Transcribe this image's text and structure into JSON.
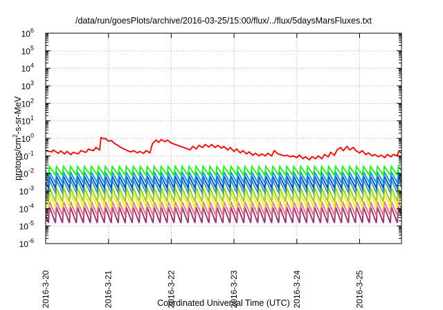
{
  "chart_data": {
    "type": "line",
    "title": "/data/run/goesPlots/archive/2016-03-25/15:00/flux/../flux/5daysMarsFluxes.txt",
    "xlabel": "Coordinated Universal Time (UTC)",
    "ylabel_base": "protons/cm",
    "ylabel_sup": "2",
    "ylabel_tail": "-s-sr-MeV",
    "y_scale": "log",
    "ylim": [
      1e-06,
      1000000.0
    ],
    "y_ticks": [
      {
        "exp": -6,
        "base": "10",
        "sup": "-6"
      },
      {
        "exp": -5,
        "base": "10",
        "sup": "-5"
      },
      {
        "exp": -4,
        "base": "10",
        "sup": "-4"
      },
      {
        "exp": -3,
        "base": "10",
        "sup": "-3"
      },
      {
        "exp": -2,
        "base": "10",
        "sup": "-2"
      },
      {
        "exp": -1,
        "base": "10",
        "sup": "-1"
      },
      {
        "exp": 0,
        "base": "10",
        "sup": "0"
      },
      {
        "exp": 1,
        "base": "10",
        "sup": "1"
      },
      {
        "exp": 2,
        "base": "10",
        "sup": "2"
      },
      {
        "exp": 3,
        "base": "10",
        "sup": "3"
      },
      {
        "exp": 4,
        "base": "10",
        "sup": "4"
      },
      {
        "exp": 5,
        "base": "10",
        "sup": "5"
      },
      {
        "exp": 6,
        "base": "10",
        "sup": "6"
      }
    ],
    "xlim": [
      "2016-03-20",
      "2016-03-25 16:00"
    ],
    "x_ticks": [
      {
        "day": 0,
        "label": "2016-3-20"
      },
      {
        "day": 1,
        "label": "2016-3-21"
      },
      {
        "day": 2,
        "label": "2016-3-22"
      },
      {
        "day": 3,
        "label": "2016-3-23"
      },
      {
        "day": 4,
        "label": "2016-3-24"
      },
      {
        "day": 5,
        "label": "2016-3-25"
      }
    ],
    "grid": true,
    "legend": "none",
    "cycles_per_day": 9,
    "series": [
      {
        "color": "#ee1111",
        "style": "irregular",
        "points": [
          [
            0.0,
            0.2
          ],
          [
            0.1,
            0.17
          ],
          [
            0.12,
            0.22
          ],
          [
            0.2,
            0.14
          ],
          [
            0.24,
            0.19
          ],
          [
            0.3,
            0.13
          ],
          [
            0.34,
            0.18
          ],
          [
            0.4,
            0.12
          ],
          [
            0.44,
            0.16
          ],
          [
            0.52,
            0.13
          ],
          [
            0.56,
            0.2
          ],
          [
            0.64,
            0.16
          ],
          [
            0.68,
            0.24
          ],
          [
            0.76,
            0.2
          ],
          [
            0.8,
            0.3
          ],
          [
            0.86,
            0.22
          ],
          [
            0.88,
            1.1
          ],
          [
            0.93,
            0.95
          ],
          [
            0.95,
            1.0
          ],
          [
            1.0,
            0.7
          ],
          [
            1.05,
            0.75
          ],
          [
            1.1,
            0.5
          ],
          [
            1.15,
            0.4
          ],
          [
            1.2,
            0.3
          ],
          [
            1.25,
            0.25
          ],
          [
            1.3,
            0.2
          ],
          [
            1.36,
            0.17
          ],
          [
            1.4,
            0.2
          ],
          [
            1.46,
            0.15
          ],
          [
            1.5,
            0.18
          ],
          [
            1.56,
            0.14
          ],
          [
            1.6,
            0.2
          ],
          [
            1.66,
            0.15
          ],
          [
            1.7,
            0.5
          ],
          [
            1.76,
            0.8
          ],
          [
            1.8,
            0.6
          ],
          [
            1.84,
            0.85
          ],
          [
            1.9,
            0.65
          ],
          [
            1.94,
            0.8
          ],
          [
            2.0,
            0.55
          ],
          [
            2.1,
            0.4
          ],
          [
            2.2,
            0.3
          ],
          [
            2.3,
            0.22
          ],
          [
            2.34,
            0.35
          ],
          [
            2.4,
            0.25
          ],
          [
            2.44,
            0.4
          ],
          [
            2.5,
            0.3
          ],
          [
            2.54,
            0.45
          ],
          [
            2.6,
            0.32
          ],
          [
            2.64,
            0.45
          ],
          [
            2.7,
            0.3
          ],
          [
            2.74,
            0.4
          ],
          [
            2.8,
            0.28
          ],
          [
            2.84,
            0.35
          ],
          [
            2.9,
            0.22
          ],
          [
            2.94,
            0.3
          ],
          [
            3.0,
            0.18
          ],
          [
            3.04,
            0.25
          ],
          [
            3.1,
            0.15
          ],
          [
            3.14,
            0.2
          ],
          [
            3.2,
            0.13
          ],
          [
            3.24,
            0.17
          ],
          [
            3.3,
            0.11
          ],
          [
            3.34,
            0.14
          ],
          [
            3.4,
            0.1
          ],
          [
            3.44,
            0.13
          ],
          [
            3.5,
            0.1
          ],
          [
            3.54,
            0.14
          ],
          [
            3.6,
            0.1
          ],
          [
            3.64,
            0.2
          ],
          [
            3.7,
            0.13
          ],
          [
            3.74,
            0.12
          ],
          [
            3.8,
            0.1
          ],
          [
            3.84,
            0.11
          ],
          [
            3.9,
            0.09
          ],
          [
            3.94,
            0.1
          ],
          [
            4.0,
            0.08
          ],
          [
            4.04,
            0.11
          ],
          [
            4.1,
            0.07
          ],
          [
            4.14,
            0.09
          ],
          [
            4.2,
            0.06
          ],
          [
            4.24,
            0.09
          ],
          [
            4.3,
            0.07
          ],
          [
            4.34,
            0.1
          ],
          [
            4.4,
            0.07
          ],
          [
            4.44,
            0.12
          ],
          [
            4.5,
            0.09
          ],
          [
            4.54,
            0.16
          ],
          [
            4.6,
            0.11
          ],
          [
            4.64,
            0.22
          ],
          [
            4.7,
            0.3
          ],
          [
            4.74,
            0.2
          ],
          [
            4.8,
            0.35
          ],
          [
            4.84,
            0.22
          ],
          [
            4.9,
            0.3
          ],
          [
            4.94,
            0.2
          ],
          [
            5.0,
            0.15
          ],
          [
            5.04,
            0.2
          ],
          [
            5.1,
            0.12
          ],
          [
            5.14,
            0.15
          ],
          [
            5.2,
            0.1
          ],
          [
            5.24,
            0.12
          ],
          [
            5.3,
            0.09
          ],
          [
            5.34,
            0.11
          ],
          [
            5.4,
            0.08
          ],
          [
            5.44,
            0.12
          ],
          [
            5.5,
            0.09
          ],
          [
            5.54,
            0.12
          ],
          [
            5.6,
            0.1
          ],
          [
            5.62,
            0.18
          ],
          [
            5.67,
            0.15
          ],
          [
            5.69,
            0.2
          ]
        ]
      },
      {
        "color": "#22ee22",
        "style": "sawtooth",
        "peak": 0.025,
        "trough": 0.008
      },
      {
        "color": "#1199dd",
        "style": "sawtooth",
        "peak": 0.012,
        "trough": 0.003
      },
      {
        "color": "#1144dd",
        "style": "sawtooth",
        "peak": 0.007,
        "trough": 0.0015
      },
      {
        "color": "#33aa88",
        "style": "sawtooth",
        "peak": 0.004,
        "trough": 0.0008
      },
      {
        "color": "#99cc33",
        "style": "sawtooth",
        "peak": 0.0015,
        "trough": 0.00025
      },
      {
        "color": "#eeee22",
        "style": "sawtooth",
        "peak": 0.0008,
        "trough": 0.00012
      },
      {
        "color": "#dd7788",
        "style": "sawtooth",
        "peak": 0.00025,
        "trough": 4e-05
      },
      {
        "color": "#993377",
        "style": "sawtooth",
        "peak": 0.00012,
        "trough": 1.5e-05
      }
    ]
  }
}
